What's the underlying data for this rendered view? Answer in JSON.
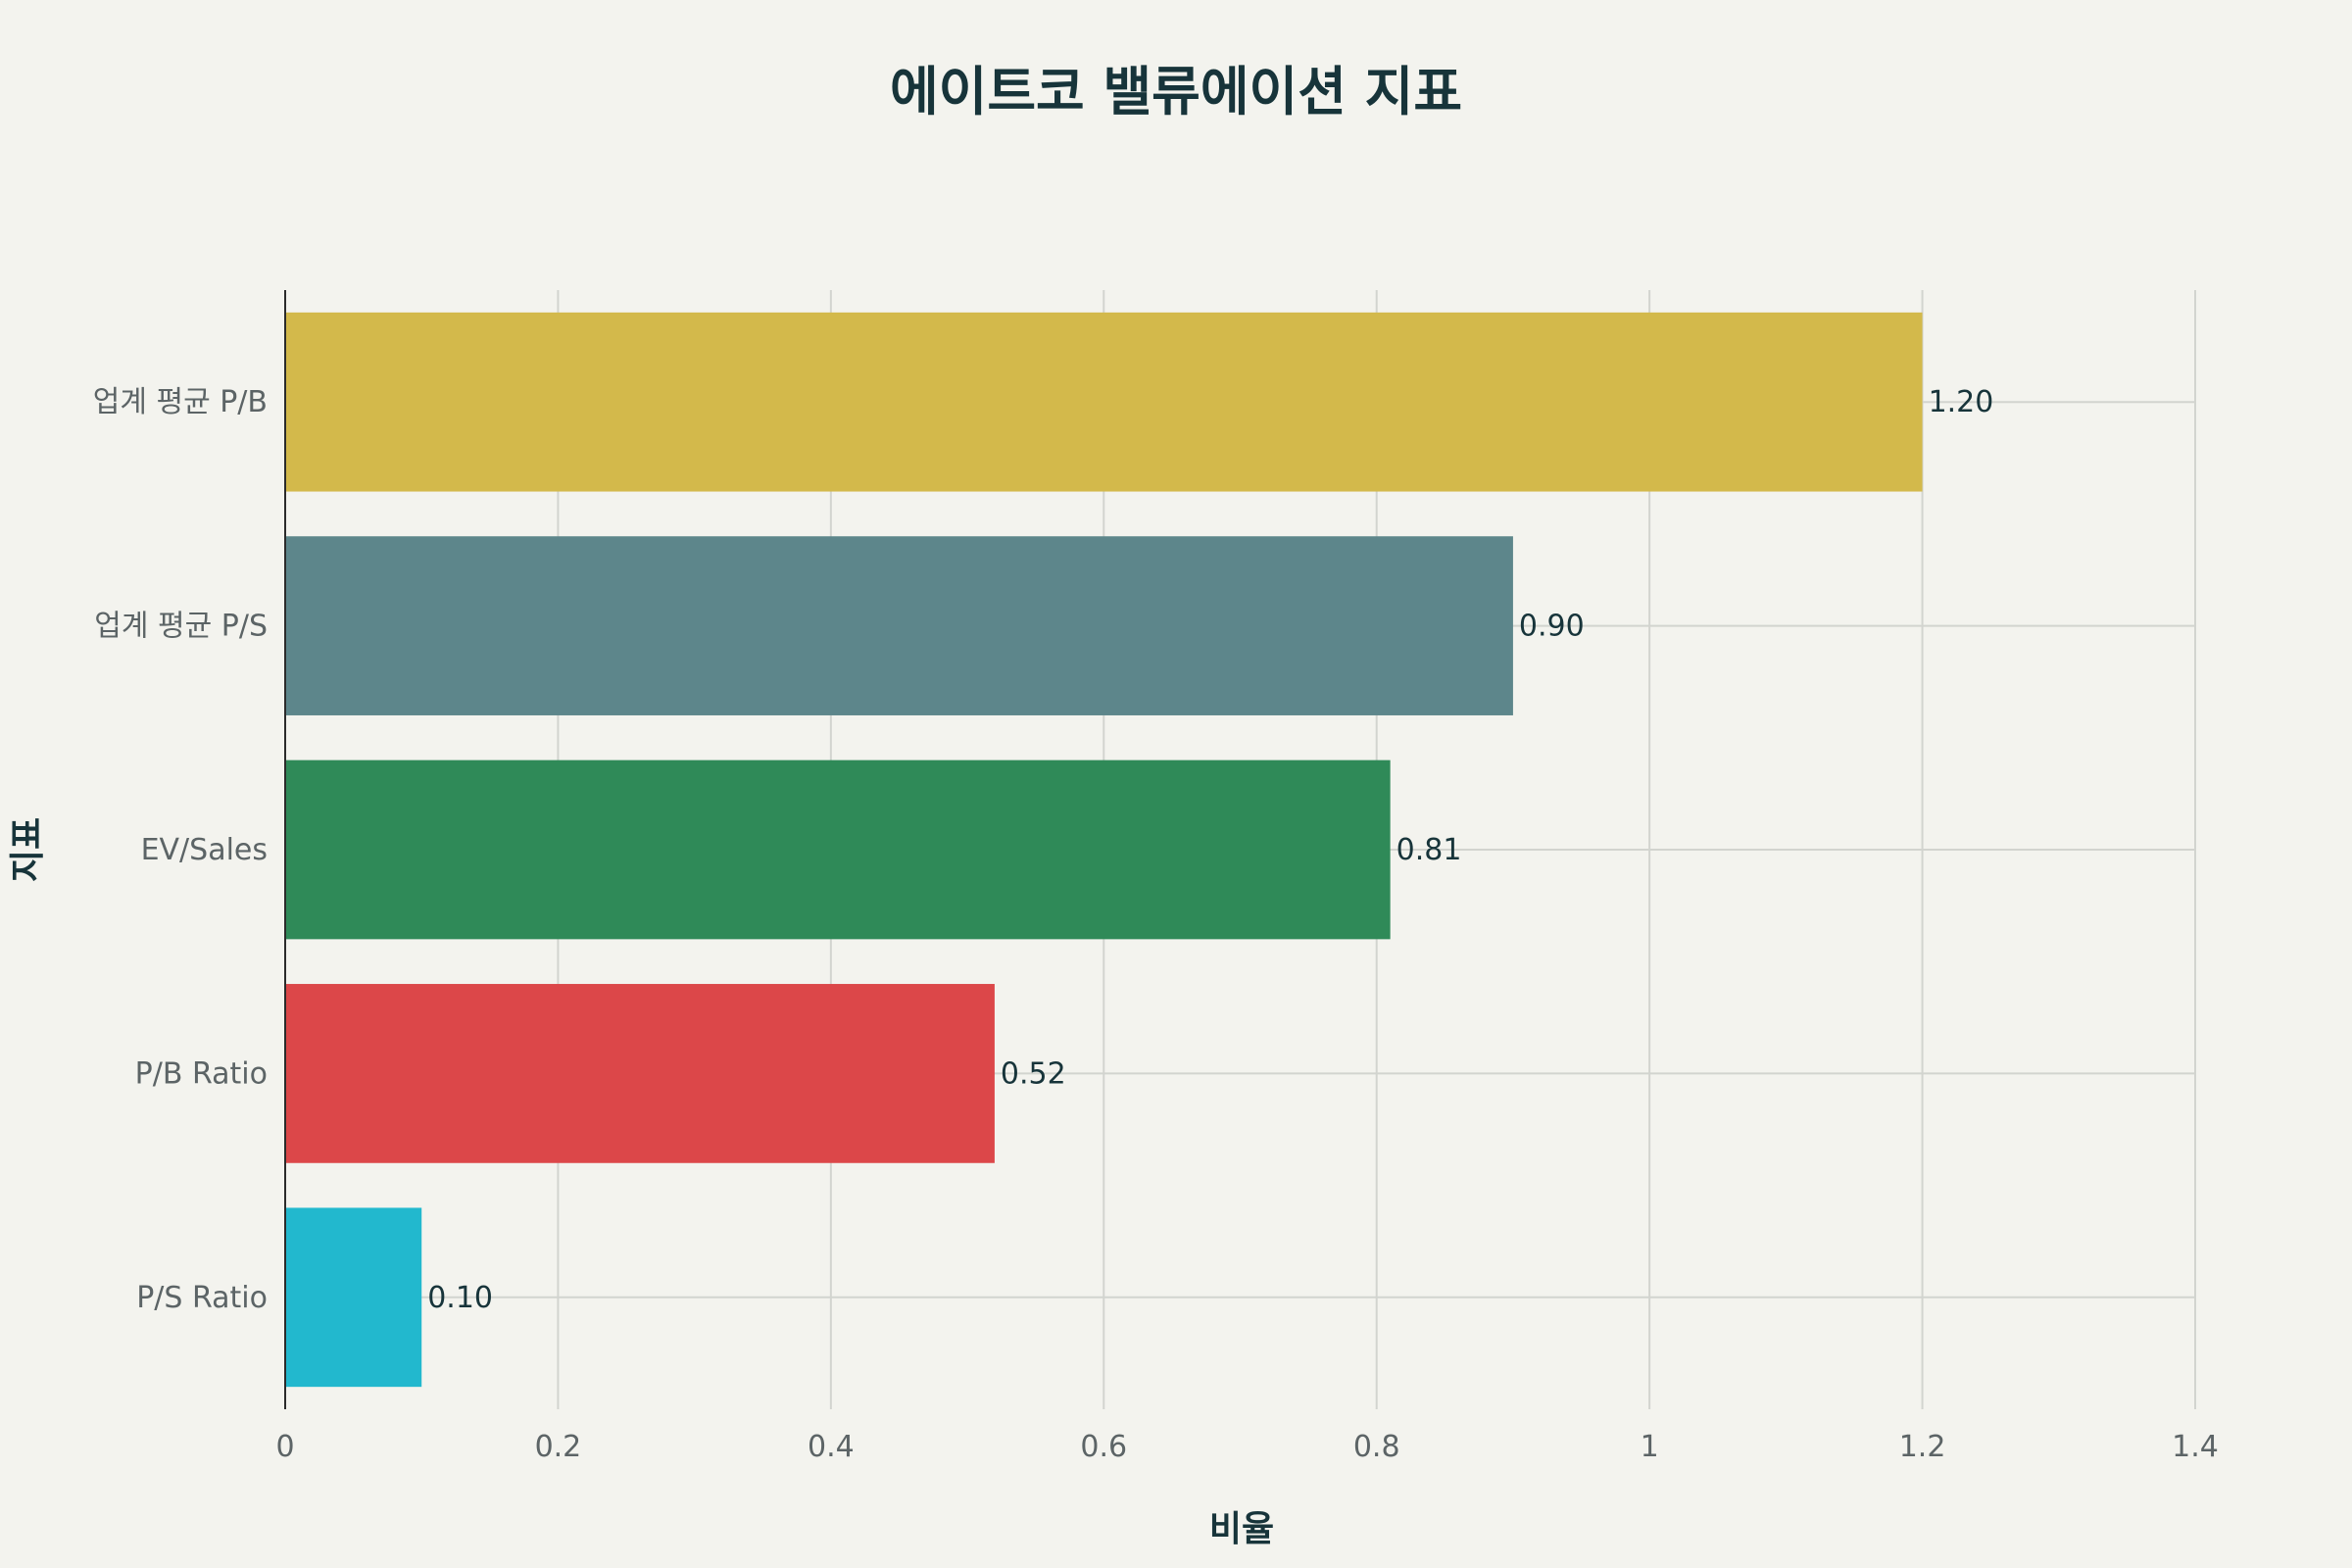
{
  "chart_data": {
    "type": "bar",
    "orientation": "horizontal",
    "title": "에이트코 밸류에이션 지표",
    "xlabel": "비율",
    "ylabel": "지표",
    "categories": [
      "업계 평균 P/B",
      "업계 평균 P/S",
      "EV/Sales",
      "P/B Ratio",
      "P/S Ratio"
    ],
    "values": [
      1.2,
      0.9,
      0.81,
      0.52,
      0.1
    ],
    "value_labels": [
      "1.20",
      "0.90",
      "0.81",
      "0.52",
      "0.10"
    ],
    "colors": [
      "#d3b94b",
      "#5d868b",
      "#2f8a58",
      "#dc4749",
      "#22b8ce"
    ],
    "xlim": [
      0,
      1.4
    ],
    "xticks": [
      0,
      0.2,
      0.4,
      0.6,
      0.8,
      1,
      1.2,
      1.4
    ],
    "xtick_labels": [
      "0",
      "0.2",
      "0.4",
      "0.6",
      "0.8",
      "1",
      "1.2",
      "1.4"
    ],
    "grid": true,
    "legend": "none"
  }
}
